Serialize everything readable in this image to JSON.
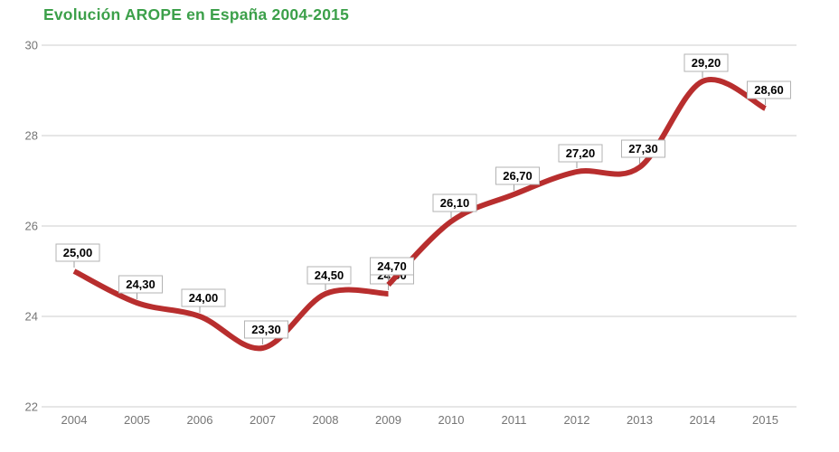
{
  "chart_data": {
    "type": "line",
    "title": "Evolución AROPE en España 2004-2015",
    "title_color": "#3CA04A",
    "line_color": "#B82E2E",
    "grid_color": "#CCCCCC",
    "axis_text_color": "#757575",
    "label_box_border": "#B3B3B3",
    "label_text_color": "#000000",
    "legend": "none",
    "grid": true,
    "x_ticks": [
      "2004",
      "2005",
      "2006",
      "2007",
      "2008",
      "2009",
      "2010",
      "2011",
      "2012",
      "2013",
      "2014",
      "2015"
    ],
    "y_ticks": [
      22,
      24,
      26,
      28,
      30
    ],
    "ylim": [
      22,
      30
    ],
    "xlabel": "",
    "ylabel": "",
    "series": [
      {
        "points": [
          {
            "x": 2004,
            "y": 25.0,
            "label": "25,00"
          },
          {
            "x": 2005,
            "y": 24.3,
            "label": "24,30"
          },
          {
            "x": 2006,
            "y": 24.0,
            "label": "24,00"
          },
          {
            "x": 2007,
            "y": 23.3,
            "label": "23,30"
          },
          {
            "x": 2008,
            "y": 24.5,
            "label": "24,50"
          },
          {
            "x": 2009,
            "y": 24.5,
            "label": "24,50"
          }
        ]
      },
      {
        "points": [
          {
            "x": 2009,
            "y": 24.7,
            "label": "24,70"
          },
          {
            "x": 2010,
            "y": 26.1,
            "label": "26,10"
          },
          {
            "x": 2011,
            "y": 26.7,
            "label": "26,70"
          },
          {
            "x": 2012,
            "y": 27.2,
            "label": "27,20"
          },
          {
            "x": 2013,
            "y": 27.3,
            "label": "27,30"
          },
          {
            "x": 2014,
            "y": 29.2,
            "label": "29,20"
          },
          {
            "x": 2015,
            "y": 28.6,
            "label": "28,60"
          }
        ]
      }
    ]
  }
}
